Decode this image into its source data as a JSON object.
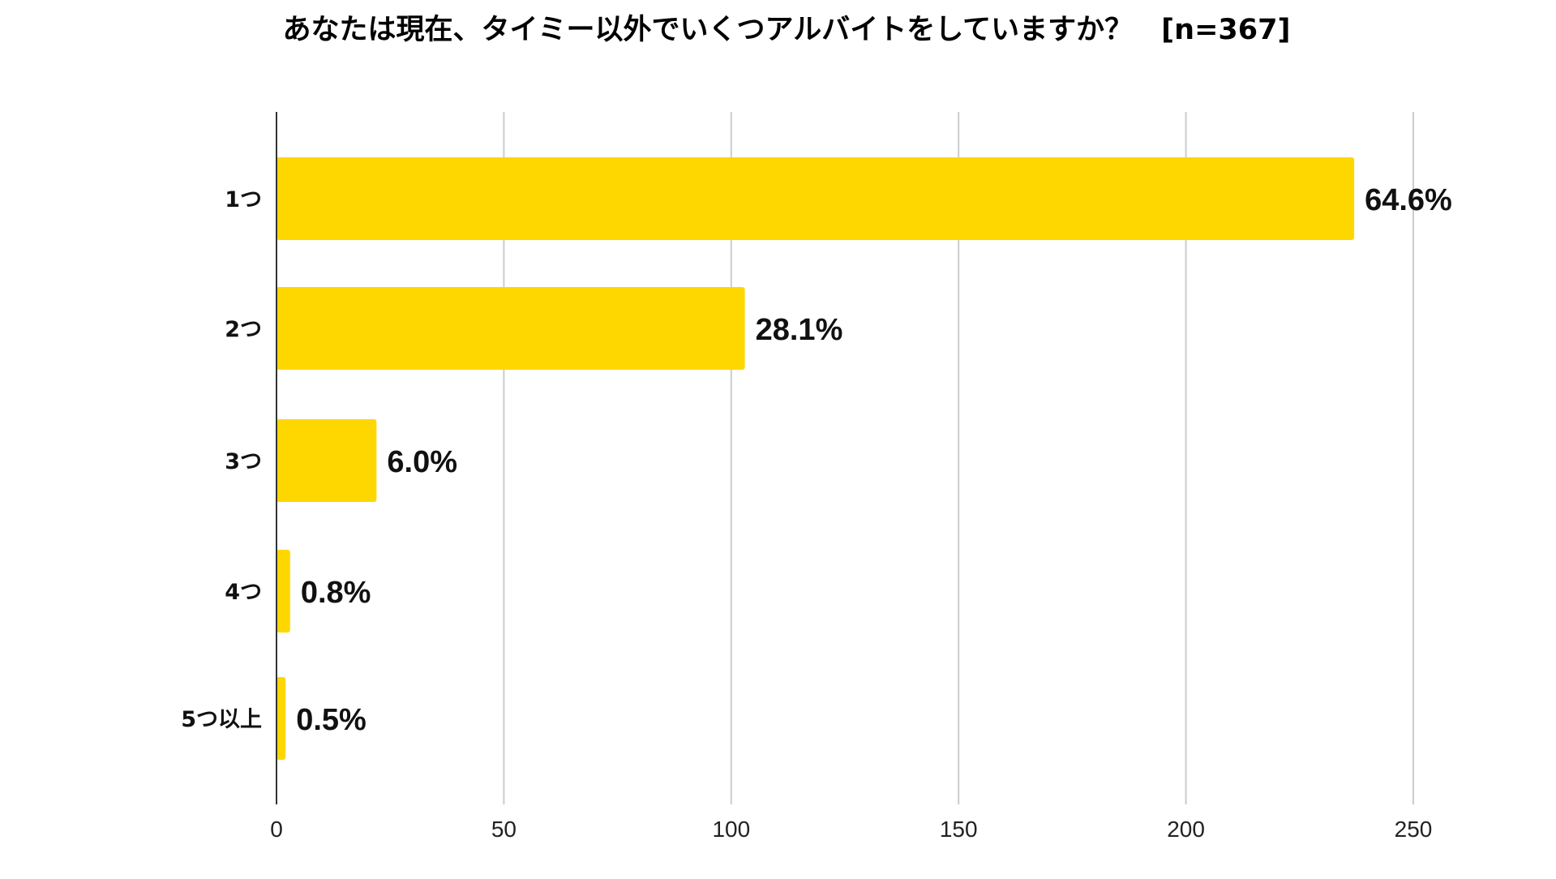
{
  "chart_data": {
    "type": "bar",
    "orientation": "horizontal",
    "title": "あなたは現在、タイミー以外でいくつアルバイトをしていますか？　[n=367]",
    "categories": [
      "1つ",
      "2つ",
      "3つ",
      "4つ",
      "5つ以上"
    ],
    "values": [
      237,
      103,
      22,
      3,
      2
    ],
    "data_labels": [
      "64.6%",
      "28.1%",
      "6.0%",
      "0.8%",
      "0.5%"
    ],
    "xlim": [
      0,
      250
    ],
    "x_ticks": [
      "0",
      "50",
      "100",
      "150",
      "200",
      "250"
    ],
    "x_tick_values": [
      0,
      50,
      100,
      150,
      200,
      250
    ],
    "grid": "vertical",
    "legend": "none",
    "bar_color": "#FFD700",
    "grid_color": "#cccccc",
    "axis_color": "#333333"
  }
}
